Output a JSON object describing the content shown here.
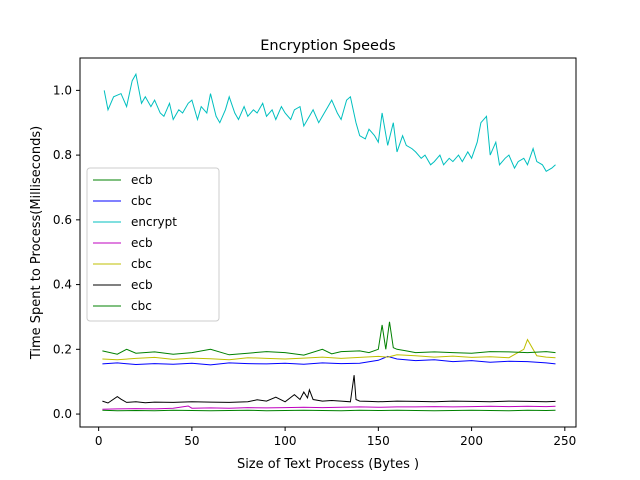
{
  "chart_data": {
    "type": "line",
    "title": "Encryption Speeds",
    "xlabel": "Size of Text Process (Bytes )",
    "ylabel": "Time Spent to Process(Milliseconds)",
    "xlim": [
      -10,
      256
    ],
    "ylim": [
      -0.04,
      1.1
    ],
    "xticks": [
      0,
      50,
      100,
      150,
      200,
      250
    ],
    "yticks": [
      0.0,
      0.2,
      0.4,
      0.6,
      0.8,
      1.0
    ],
    "xtick_labels": [
      "0",
      "50",
      "100",
      "150",
      "200",
      "250"
    ],
    "ytick_labels": [
      "0.0",
      "0.2",
      "0.4",
      "0.6",
      "0.8",
      "1.0"
    ],
    "grid": false,
    "legend_position": "center-left",
    "series": [
      {
        "name": "ecb",
        "color": "#008000",
        "x": [
          2,
          10,
          20,
          30,
          40,
          50,
          60,
          70,
          80,
          90,
          100,
          110,
          120,
          130,
          140,
          150,
          160,
          170,
          180,
          190,
          200,
          210,
          220,
          230,
          240,
          245
        ],
        "values": [
          0.012,
          0.01,
          0.011,
          0.01,
          0.012,
          0.011,
          0.01,
          0.011,
          0.012,
          0.01,
          0.011,
          0.012,
          0.011,
          0.01,
          0.012,
          0.011,
          0.012,
          0.011,
          0.01,
          0.011,
          0.012,
          0.011,
          0.01,
          0.012,
          0.011,
          0.012
        ]
      },
      {
        "name": "cbc",
        "color": "#0000ff",
        "x": [
          2,
          10,
          20,
          30,
          40,
          50,
          60,
          70,
          80,
          90,
          100,
          110,
          120,
          130,
          140,
          150,
          155,
          160,
          170,
          180,
          190,
          200,
          210,
          220,
          230,
          240,
          245
        ],
        "values": [
          0.155,
          0.158,
          0.153,
          0.156,
          0.154,
          0.157,
          0.152,
          0.158,
          0.156,
          0.155,
          0.157,
          0.154,
          0.158,
          0.156,
          0.157,
          0.166,
          0.178,
          0.17,
          0.165,
          0.168,
          0.162,
          0.165,
          0.16,
          0.163,
          0.162,
          0.158,
          0.155
        ]
      },
      {
        "name": "encrypt",
        "color": "#00bfbf",
        "x": [
          3,
          5,
          8,
          12,
          15,
          18,
          20,
          23,
          25,
          28,
          30,
          33,
          35,
          38,
          40,
          43,
          45,
          48,
          50,
          53,
          55,
          58,
          60,
          63,
          65,
          68,
          70,
          73,
          75,
          78,
          80,
          83,
          85,
          88,
          90,
          93,
          95,
          98,
          100,
          103,
          105,
          108,
          110,
          113,
          115,
          118,
          120,
          123,
          125,
          128,
          130,
          133,
          135,
          138,
          140,
          143,
          145,
          148,
          150,
          152,
          155,
          158,
          160,
          163,
          165,
          168,
          170,
          173,
          175,
          178,
          180,
          183,
          185,
          188,
          190,
          193,
          195,
          198,
          200,
          203,
          205,
          208,
          210,
          213,
          215,
          218,
          220,
          223,
          225,
          228,
          230,
          233,
          235,
          238,
          240,
          243,
          245
        ],
        "values": [
          1.0,
          0.94,
          0.98,
          0.99,
          0.95,
          1.03,
          1.05,
          0.96,
          0.98,
          0.95,
          0.97,
          0.93,
          0.92,
          0.96,
          0.91,
          0.94,
          0.93,
          0.96,
          0.97,
          0.91,
          0.95,
          0.93,
          0.99,
          0.92,
          0.9,
          0.94,
          0.98,
          0.93,
          0.91,
          0.95,
          0.92,
          0.94,
          0.93,
          0.96,
          0.92,
          0.94,
          0.91,
          0.95,
          0.93,
          0.91,
          0.94,
          0.95,
          0.89,
          0.92,
          0.94,
          0.9,
          0.92,
          0.95,
          0.97,
          0.93,
          0.91,
          0.97,
          0.98,
          0.9,
          0.86,
          0.85,
          0.88,
          0.86,
          0.84,
          0.93,
          0.83,
          0.9,
          0.81,
          0.86,
          0.83,
          0.82,
          0.81,
          0.79,
          0.8,
          0.77,
          0.78,
          0.8,
          0.77,
          0.79,
          0.78,
          0.8,
          0.78,
          0.81,
          0.79,
          0.84,
          0.9,
          0.92,
          0.8,
          0.84,
          0.77,
          0.79,
          0.8,
          0.76,
          0.78,
          0.79,
          0.77,
          0.82,
          0.78,
          0.77,
          0.75,
          0.76,
          0.77
        ]
      },
      {
        "name": "ecb",
        "color": "#bf00bf",
        "x": [
          2,
          10,
          20,
          30,
          40,
          48,
          50,
          60,
          70,
          80,
          90,
          100,
          110,
          120,
          130,
          140,
          150,
          160,
          170,
          180,
          190,
          200,
          210,
          220,
          230,
          240,
          245
        ],
        "values": [
          0.015,
          0.016,
          0.017,
          0.016,
          0.018,
          0.025,
          0.018,
          0.019,
          0.018,
          0.02,
          0.019,
          0.02,
          0.021,
          0.02,
          0.021,
          0.022,
          0.021,
          0.022,
          0.022,
          0.023,
          0.022,
          0.023,
          0.024,
          0.023,
          0.024,
          0.023,
          0.024
        ]
      },
      {
        "name": "cbc",
        "color": "#bfbf00",
        "x": [
          2,
          10,
          20,
          30,
          40,
          50,
          60,
          70,
          80,
          90,
          100,
          110,
          120,
          130,
          140,
          150,
          155,
          160,
          170,
          180,
          190,
          200,
          210,
          220,
          228,
          230,
          235,
          240,
          245
        ],
        "values": [
          0.17,
          0.168,
          0.172,
          0.175,
          0.169,
          0.173,
          0.171,
          0.168,
          0.174,
          0.172,
          0.17,
          0.173,
          0.176,
          0.172,
          0.175,
          0.178,
          0.176,
          0.183,
          0.18,
          0.176,
          0.179,
          0.175,
          0.177,
          0.174,
          0.2,
          0.23,
          0.18,
          0.176,
          0.174
        ]
      },
      {
        "name": "ecb",
        "color": "#000000",
        "x": [
          2,
          5,
          10,
          12,
          15,
          20,
          25,
          30,
          40,
          50,
          60,
          70,
          80,
          85,
          90,
          95,
          100,
          105,
          108,
          110,
          112,
          113,
          115,
          120,
          125,
          130,
          135,
          137,
          138,
          140,
          145,
          150,
          160,
          170,
          180,
          190,
          200,
          210,
          220,
          230,
          240,
          245
        ],
        "values": [
          0.04,
          0.034,
          0.054,
          0.046,
          0.036,
          0.038,
          0.035,
          0.037,
          0.036,
          0.038,
          0.037,
          0.036,
          0.038,
          0.044,
          0.04,
          0.052,
          0.038,
          0.06,
          0.045,
          0.068,
          0.05,
          0.075,
          0.045,
          0.04,
          0.042,
          0.04,
          0.038,
          0.12,
          0.045,
          0.04,
          0.039,
          0.038,
          0.04,
          0.039,
          0.038,
          0.04,
          0.039,
          0.038,
          0.04,
          0.039,
          0.038,
          0.039
        ]
      },
      {
        "name": "cbc",
        "color": "#008000",
        "x": [
          2,
          10,
          15,
          20,
          30,
          40,
          50,
          60,
          70,
          80,
          90,
          100,
          110,
          120,
          125,
          130,
          140,
          145,
          150,
          152,
          154,
          156,
          158,
          160,
          165,
          170,
          180,
          190,
          200,
          210,
          220,
          230,
          240,
          245
        ],
        "values": [
          0.195,
          0.185,
          0.2,
          0.188,
          0.192,
          0.185,
          0.19,
          0.2,
          0.183,
          0.188,
          0.193,
          0.19,
          0.182,
          0.2,
          0.186,
          0.193,
          0.195,
          0.19,
          0.2,
          0.275,
          0.2,
          0.285,
          0.205,
          0.2,
          0.195,
          0.19,
          0.192,
          0.19,
          0.188,
          0.193,
          0.192,
          0.19,
          0.193,
          0.19
        ]
      }
    ]
  }
}
